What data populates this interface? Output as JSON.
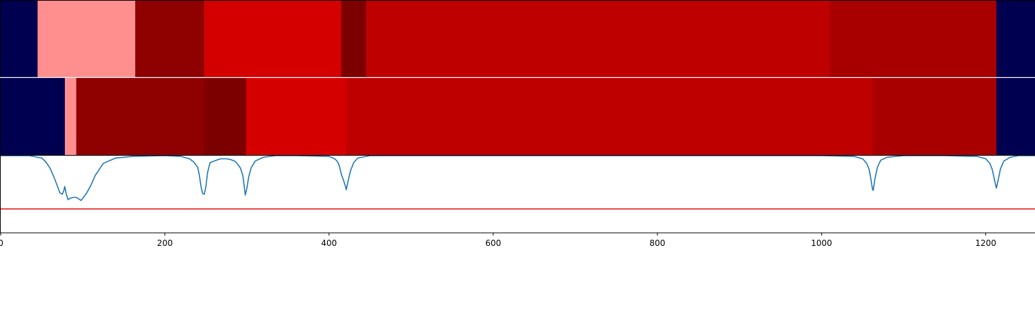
{
  "chart_data": [
    {
      "type": "heatmap",
      "segments": [
        {
          "start": 0,
          "end": 45,
          "color": "#000050"
        },
        {
          "start": 45,
          "end": 164,
          "color": "#ff8f8f"
        },
        {
          "start": 164,
          "end": 248,
          "color": "#8f0000"
        },
        {
          "start": 248,
          "end": 415,
          "color": "#d40000"
        },
        {
          "start": 415,
          "end": 445,
          "color": "#7d0000"
        },
        {
          "start": 445,
          "end": 1010,
          "color": "#bf0000"
        },
        {
          "start": 1010,
          "end": 1213,
          "color": "#a80000"
        },
        {
          "start": 1213,
          "end": 1260,
          "color": "#000050"
        }
      ]
    },
    {
      "type": "heatmap",
      "segments": [
        {
          "start": 0,
          "end": 78,
          "color": "#000050"
        },
        {
          "start": 78,
          "end": 92,
          "color": "#ff8f8f"
        },
        {
          "start": 92,
          "end": 248,
          "color": "#8f0000"
        },
        {
          "start": 248,
          "end": 299,
          "color": "#7d0000"
        },
        {
          "start": 299,
          "end": 421,
          "color": "#d40000"
        },
        {
          "start": 421,
          "end": 1062,
          "color": "#bf0000"
        },
        {
          "start": 1062,
          "end": 1213,
          "color": "#a80000"
        },
        {
          "start": 1213,
          "end": 1260,
          "color": "#000050"
        }
      ]
    },
    {
      "type": "line",
      "xlim": [
        0,
        1260
      ],
      "ylim": [
        0,
        1
      ],
      "series": [
        {
          "color": "#1f77b4",
          "x": [
            0,
            35,
            40,
            50,
            55,
            60,
            65,
            70,
            72,
            75,
            77,
            78,
            80,
            82,
            85,
            88,
            92,
            95,
            98,
            100,
            103,
            105,
            110,
            115,
            125,
            140,
            160,
            200,
            220,
            230,
            235,
            240,
            242,
            244,
            246,
            248,
            250,
            252,
            255,
            260,
            265,
            268,
            270,
            275,
            280,
            285,
            288,
            292,
            295,
            297,
            298,
            300,
            302,
            305,
            310,
            320,
            335,
            360,
            400,
            405,
            408,
            411,
            413,
            415,
            418,
            420,
            421,
            423,
            426,
            430,
            435,
            450,
            500,
            600,
            700,
            800,
            900,
            1000,
            1040,
            1050,
            1055,
            1058,
            1060,
            1062,
            1063,
            1065,
            1068,
            1072,
            1080,
            1100,
            1150,
            1190,
            1200,
            1205,
            1208,
            1210,
            1212,
            1213,
            1215,
            1218,
            1222,
            1230,
            1240,
            1260
          ],
          "y": [
            1.0,
            1.0,
            0.99,
            0.97,
            0.92,
            0.84,
            0.72,
            0.58,
            0.52,
            0.5,
            0.55,
            0.6,
            0.5,
            0.43,
            0.45,
            0.46,
            0.46,
            0.44,
            0.42,
            0.45,
            0.49,
            0.52,
            0.62,
            0.74,
            0.9,
            0.97,
            0.99,
            1.0,
            0.99,
            0.96,
            0.92,
            0.85,
            0.75,
            0.6,
            0.51,
            0.5,
            0.6,
            0.78,
            0.91,
            0.93,
            0.95,
            0.96,
            0.96,
            0.96,
            0.95,
            0.93,
            0.9,
            0.84,
            0.74,
            0.58,
            0.49,
            0.58,
            0.72,
            0.84,
            0.93,
            0.98,
            1.0,
            1.0,
            0.99,
            0.97,
            0.95,
            0.91,
            0.85,
            0.76,
            0.67,
            0.6,
            0.56,
            0.66,
            0.8,
            0.91,
            0.97,
            1.0,
            1.0,
            1.0,
            1.0,
            1.0,
            1.0,
            1.0,
            0.99,
            0.96,
            0.9,
            0.82,
            0.7,
            0.57,
            0.55,
            0.7,
            0.85,
            0.94,
            0.98,
            1.0,
            1.0,
            0.99,
            0.96,
            0.9,
            0.82,
            0.72,
            0.62,
            0.58,
            0.68,
            0.83,
            0.93,
            0.98,
            1.0,
            1.0
          ]
        },
        {
          "color": "#e31a1c",
          "x": [
            0,
            1260
          ],
          "y": [
            0.31,
            0.31
          ]
        }
      ],
      "xticks": [
        0,
        200,
        400,
        600,
        800,
        1000,
        1200
      ],
      "xtick_labels": [
        "0",
        "200",
        "400",
        "600",
        "800",
        "1000",
        "1200"
      ]
    }
  ]
}
